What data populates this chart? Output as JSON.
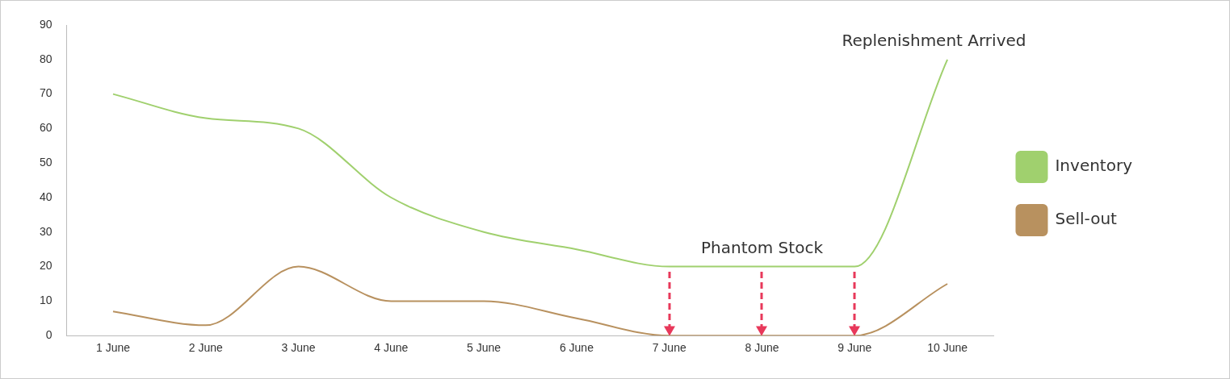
{
  "chart_data": {
    "type": "line",
    "categories": [
      "1 June",
      "2 June",
      "3 June",
      "4 June",
      "5 June",
      "6 June",
      "7 June",
      "8 June",
      "9 June",
      "10 June"
    ],
    "series": [
      {
        "name": "Inventory",
        "color": "#a0d06e",
        "values": [
          70,
          63,
          60,
          40,
          30,
          25,
          20,
          20,
          20,
          80
        ]
      },
      {
        "name": "Sell-out",
        "color": "#b8915f",
        "values": [
          7,
          3,
          20,
          10,
          10,
          5,
          0,
          0,
          0,
          15
        ]
      }
    ],
    "ylim": [
      0,
      90
    ],
    "yticks": [
      0,
      10,
      20,
      30,
      40,
      50,
      60,
      70,
      80,
      90
    ],
    "grid": false,
    "legend": "right",
    "marker": "none",
    "line_style": "solid",
    "annotations": [
      {
        "text": "Phantom Stock",
        "x": "8 June",
        "y": 20
      },
      {
        "text": "Replenishment Arrived",
        "x": "10 June",
        "y": 80
      }
    ]
  }
}
